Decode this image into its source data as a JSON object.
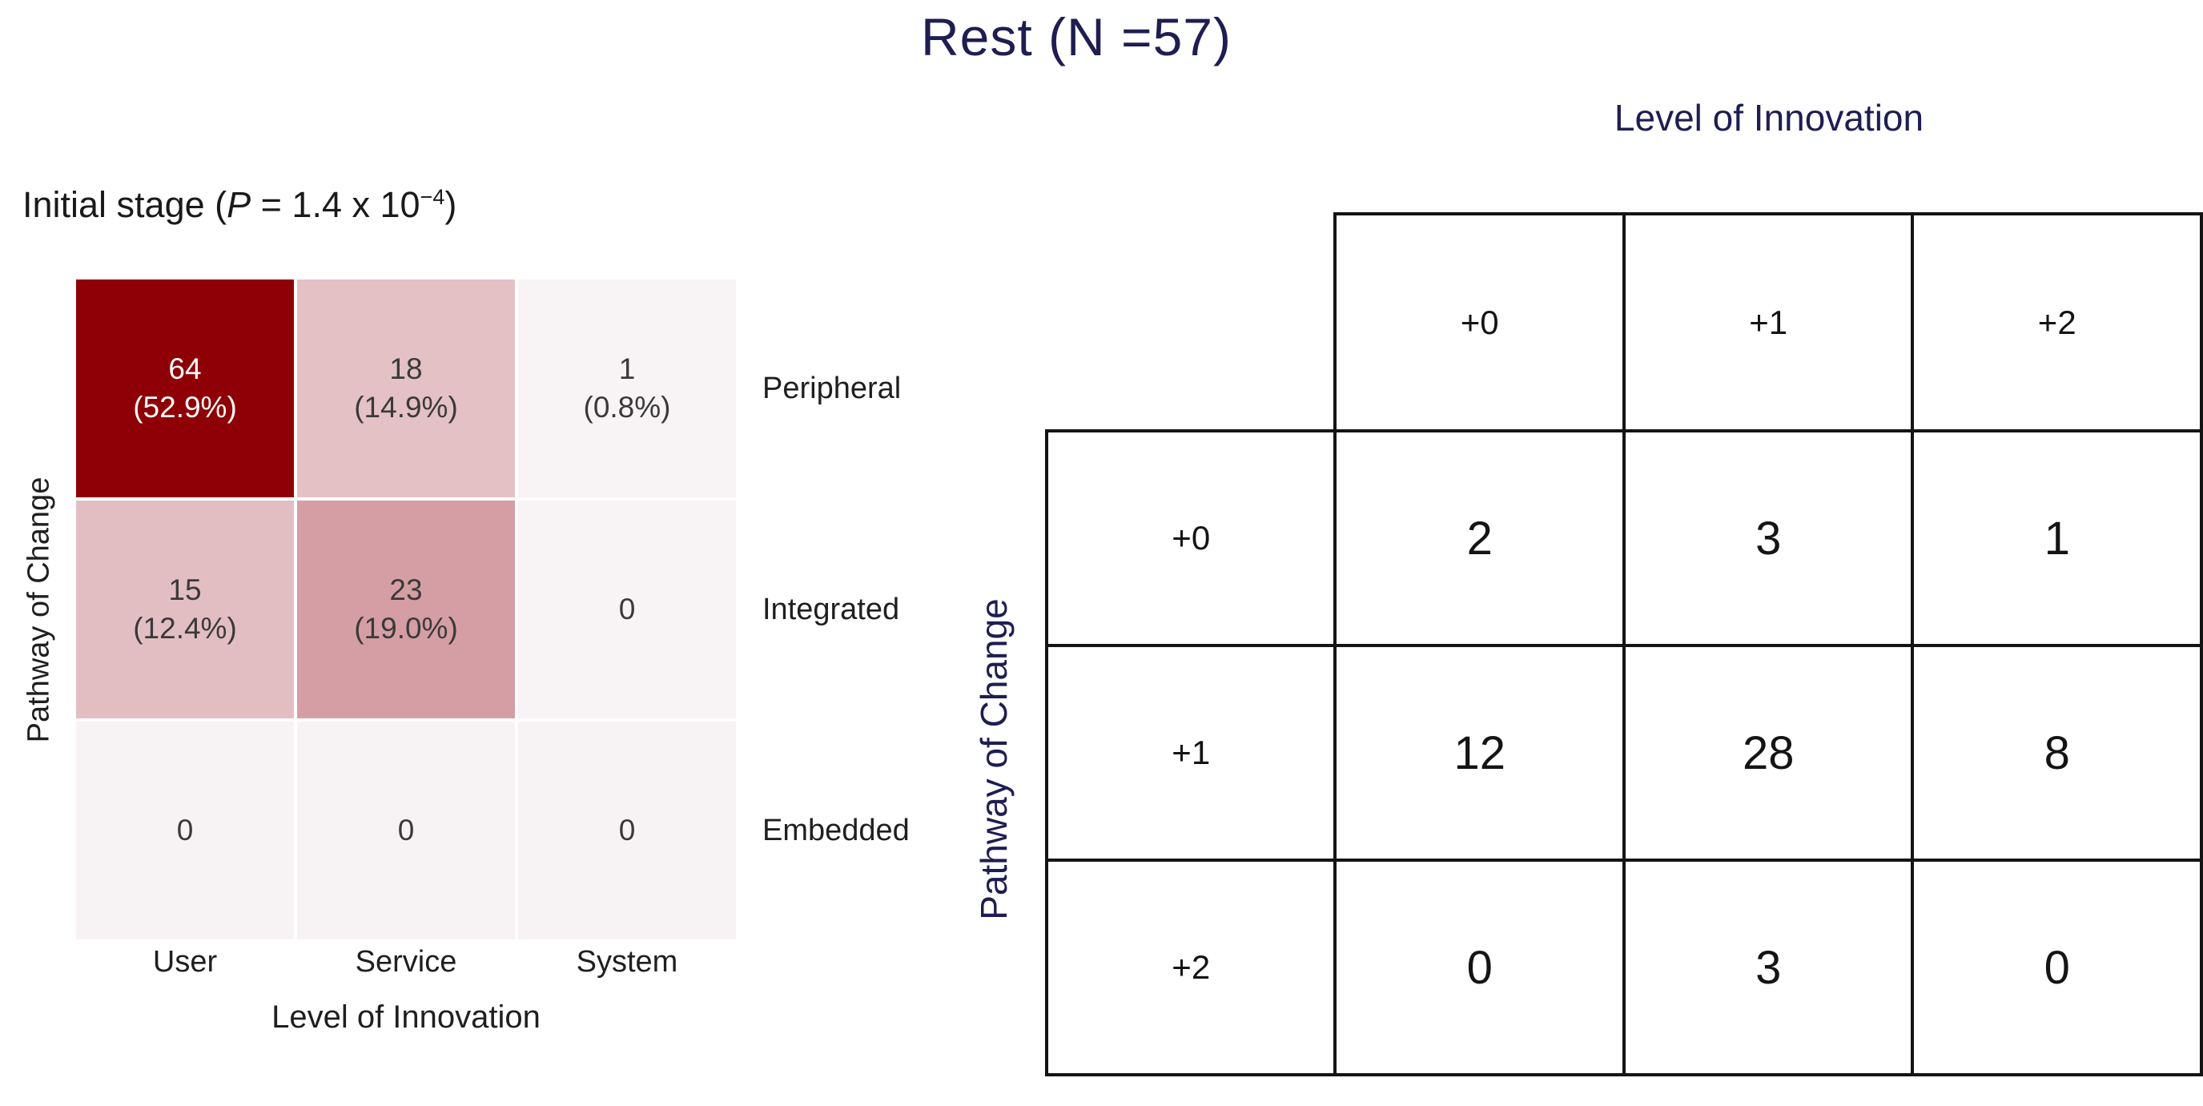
{
  "page_title": "Rest (N =57)",
  "colors": {
    "navy_label": "#1e1e52",
    "heat_dark_red": "#8e0005",
    "heat_pink_18": "#e4c1c5",
    "heat_pink_15": "#e2bec3",
    "heat_pink_23": "#d59ea5",
    "heat_near_white": "#f8f3f4",
    "heat_row3_white": "#f7f2f3",
    "table_border": "#141414"
  },
  "heatmap": {
    "title_prefix": "Initial stage (",
    "title_p": "P",
    "title_mid": " = 1.4 x 10",
    "title_sup": "−4",
    "title_close": ")",
    "y_axis_label": "Pathway of Change",
    "x_axis_label": "Level of Innovation",
    "row_labels": [
      "Peripheral",
      "Integrated",
      "Embedded"
    ],
    "col_labels": [
      "User",
      "Service",
      "System"
    ],
    "cells": [
      [
        {
          "value": "64",
          "pct": "(52.9%)",
          "bg": "#8e0005",
          "fg": "#ffffff"
        },
        {
          "value": "18",
          "pct": "(14.9%)",
          "bg": "#e4c1c5",
          "fg": "#3a3a3a"
        },
        {
          "value": "1",
          "pct": "(0.8%)",
          "bg": "#f8f3f4",
          "fg": "#3a3a3a"
        }
      ],
      [
        {
          "value": "15",
          "pct": "(12.4%)",
          "bg": "#e2bec3",
          "fg": "#3a3a3a"
        },
        {
          "value": "23",
          "pct": "(19.0%)",
          "bg": "#d59ea5",
          "fg": "#3a3a3a"
        },
        {
          "value": "0",
          "pct": "",
          "bg": "#f8f3f4",
          "fg": "#3a3a3a"
        }
      ],
      [
        {
          "value": "0",
          "pct": "",
          "bg": "#f7f2f3",
          "fg": "#3a3a3a"
        },
        {
          "value": "0",
          "pct": "",
          "bg": "#f7f2f3",
          "fg": "#3a3a3a"
        },
        {
          "value": "0",
          "pct": "",
          "bg": "#f7f2f3",
          "fg": "#3a3a3a"
        }
      ]
    ]
  },
  "table": {
    "col_group_label": "Level of Innovation",
    "row_group_label": "Pathway of Change",
    "col_headers": [
      "+0",
      "+1",
      "+2"
    ],
    "row_headers": [
      "+0",
      "+1",
      "+2"
    ],
    "rows": [
      [
        "2",
        "3",
        "1"
      ],
      [
        "12",
        "28",
        "8"
      ],
      [
        "0",
        "3",
        "0"
      ]
    ]
  },
  "chart_data": [
    {
      "type": "heatmap",
      "title": "Initial stage (P = 1.4 x 10^-4)",
      "xlabel": "Level of Innovation",
      "ylabel": "Pathway of Change",
      "x_categories": [
        "User",
        "Service",
        "System"
      ],
      "y_categories": [
        "Peripheral",
        "Integrated",
        "Embedded"
      ],
      "values": [
        [
          64,
          18,
          1
        ],
        [
          15,
          23,
          0
        ],
        [
          0,
          0,
          0
        ]
      ],
      "percent_labels": [
        [
          "52.9%",
          "14.9%",
          "0.8%"
        ],
        [
          "12.4%",
          "19.0%",
          null
        ],
        [
          null,
          null,
          null
        ]
      ],
      "colormap": "white-to-dark-red",
      "legend": "none"
    },
    {
      "type": "table",
      "title": "Rest (N =57)",
      "column_group_label": "Level of Innovation",
      "row_group_label": "Pathway of Change",
      "col_headers": [
        "+0",
        "+1",
        "+2"
      ],
      "row_headers": [
        "+0",
        "+1",
        "+2"
      ],
      "values": [
        [
          2,
          3,
          1
        ],
        [
          12,
          28,
          8
        ],
        [
          0,
          3,
          0
        ]
      ]
    }
  ]
}
